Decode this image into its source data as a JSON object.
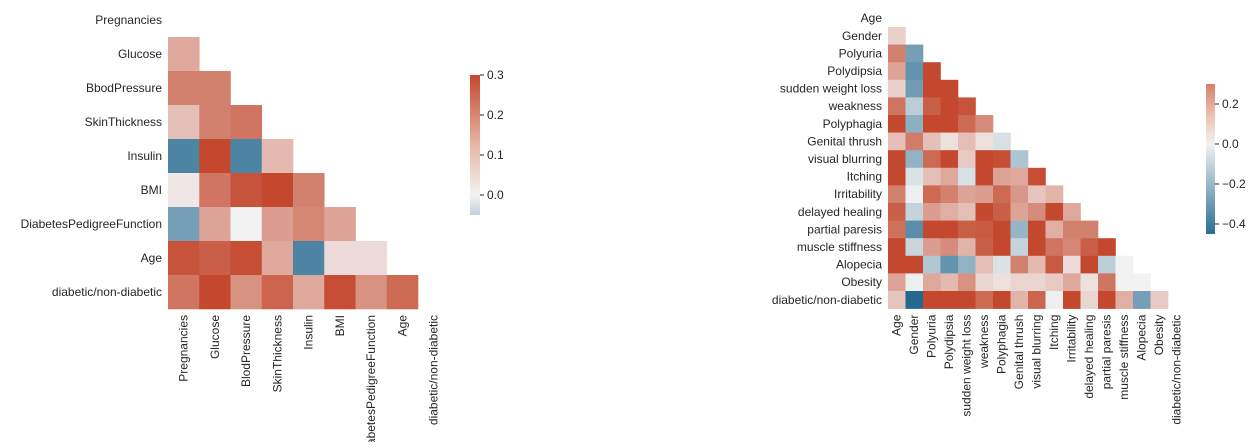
{
  "chart_data": [
    {
      "type": "heatmap",
      "mask": "upper-triangle",
      "colormap": "diverging blue-white-red",
      "vmin": -0.05,
      "vmax": 0.3,
      "colorbar_ticks": [
        "0.3",
        "0.2",
        "0.1",
        "0.0"
      ],
      "colorbar_tick_values": [
        0.3,
        0.2,
        0.1,
        0.0
      ],
      "row_labels": [
        "Pregnancies",
        "Glucose",
        "BbodPressure",
        "SkinThickness",
        "Insulin",
        "BMI",
        "DiabetesPedigreeFunction",
        "Age",
        "diabetic/non-diabetic"
      ],
      "col_labels": [
        "Pregnancies",
        "Glucose",
        "BlodPressure",
        "SkinThickness",
        "Insulin",
        "BMI",
        "DiabetesPedigreeFunction",
        "Age",
        "diabetic/non-diabetic"
      ],
      "values": [
        [],
        [
          0.13
        ],
        [
          0.2,
          0.2
        ],
        [
          0.09,
          0.2,
          0.22
        ],
        [
          -0.04,
          0.33,
          -0.04,
          0.1
        ],
        [
          0.02,
          0.22,
          0.28,
          0.39,
          0.2
        ],
        [
          -0.03,
          0.14,
          0.0,
          0.15,
          0.19,
          0.14
        ],
        [
          0.28,
          0.26,
          0.29,
          0.13,
          -0.04,
          0.04,
          0.04
        ],
        [
          0.22,
          0.31,
          0.17,
          0.25,
          0.13,
          0.29,
          0.17,
          0.24
        ]
      ]
    },
    {
      "type": "heatmap",
      "mask": "upper-triangle",
      "colormap": "diverging blue-white-red",
      "vmin": -0.45,
      "vmax": 0.3,
      "colorbar_ticks": [
        "0.2",
        "0.0",
        "−0.2",
        "−0.4"
      ],
      "colorbar_tick_values": [
        0.2,
        0.0,
        -0.2,
        -0.4
      ],
      "row_labels": [
        "Age",
        "Gender",
        "Polyuria",
        "Polydipsia",
        "sudden weight loss",
        "weakness",
        "Polyphagia",
        "Genital thrush",
        "visual blurring",
        "Itching",
        "Irritability",
        "delayed healing",
        "partial paresis",
        "muscle stiffness",
        "Alopecia",
        "Obesity",
        "diabetic/non-diabetic"
      ],
      "col_labels": [
        "Age",
        "Gender",
        "Polyuria",
        "Polydipsia",
        "sudden weight loss",
        "weakness",
        "Polyphagia",
        "Genital thrush",
        "visual blurring",
        "Itching",
        "Irritability",
        "delayed healing",
        "partial paresis",
        "muscle stiffness",
        "Alopecia",
        "Obesity",
        "diabetic/non-diabetic"
      ],
      "values": [
        [],
        [
          0.06
        ],
        [
          0.2,
          -0.27
        ],
        [
          0.14,
          -0.31,
          0.6
        ],
        [
          0.06,
          -0.28,
          0.45,
          0.41
        ],
        [
          0.22,
          -0.12,
          0.26,
          0.33,
          0.28
        ],
        [
          0.32,
          -0.22,
          0.37,
          0.32,
          0.24,
          0.18
        ],
        [
          0.09,
          0.21,
          0.09,
          0.03,
          0.09,
          0.03,
          -0.06
        ],
        [
          0.4,
          -0.21,
          0.24,
          0.33,
          0.07,
          0.3,
          0.29,
          -0.15
        ],
        [
          0.3,
          -0.05,
          0.09,
          0.13,
          -0.06,
          0.31,
          0.14,
          0.13,
          0.29
        ],
        [
          0.2,
          -0.01,
          0.24,
          0.2,
          0.14,
          0.15,
          0.24,
          0.16,
          0.08,
          0.11
        ],
        [
          0.26,
          -0.1,
          0.15,
          0.12,
          0.09,
          0.34,
          0.26,
          0.14,
          0.18,
          0.45,
          0.13
        ],
        [
          0.23,
          -0.33,
          0.44,
          0.44,
          0.26,
          0.27,
          0.37,
          -0.2,
          0.36,
          0.12,
          0.2,
          0.2
        ],
        [
          0.31,
          -0.09,
          0.15,
          0.18,
          0.11,
          0.26,
          0.32,
          -0.1,
          0.41,
          0.22,
          0.19,
          0.26,
          0.32
        ],
        [
          0.32,
          0.33,
          -0.14,
          -0.31,
          -0.21,
          0.09,
          -0.05,
          0.2,
          0.1,
          0.27,
          0.04,
          0.38,
          -0.12,
          0.0
        ],
        [
          0.14,
          -0.01,
          0.13,
          0.1,
          0.17,
          0.05,
          0.03,
          0.05,
          0.05,
          0.07,
          0.13,
          0.03,
          0.22,
          0.0,
          0.0
        ],
        [
          0.08,
          -0.45,
          0.66,
          0.65,
          0.44,
          0.24,
          0.34,
          0.11,
          0.25,
          -0.01,
          0.3,
          0.05,
          0.44,
          0.12,
          -0.27,
          0.07
        ]
      ]
    }
  ]
}
